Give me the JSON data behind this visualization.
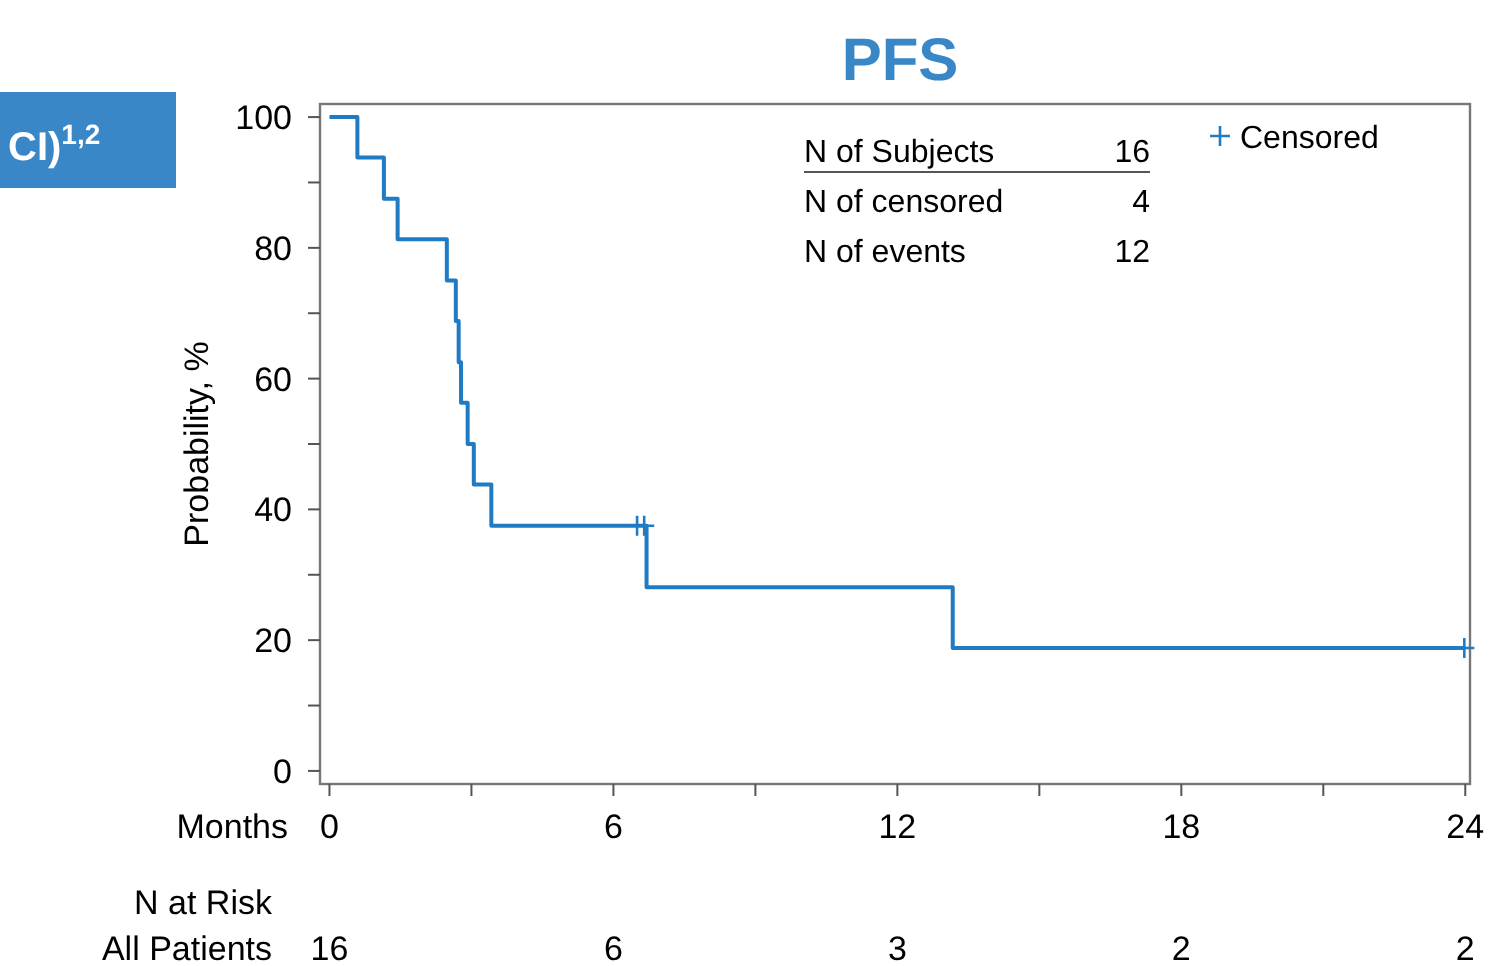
{
  "chart_data": {
    "type": "step",
    "title": "PFS",
    "xlabel": "Months",
    "ylabel": "Probability, %",
    "xlim": [
      -0.2,
      24.1
    ],
    "ylim": [
      -2,
      102
    ],
    "xticks": [
      0,
      {
        "value": 3,
        "label": null
      },
      6,
      {
        "value": 9,
        "label": null
      },
      12,
      {
        "value": 15,
        "label": null
      },
      18,
      {
        "value": 21,
        "label": null
      },
      24
    ],
    "yticks": [
      0,
      {
        "value": 10,
        "label": null
      },
      20,
      {
        "value": 30,
        "label": null
      },
      40,
      {
        "value": 50,
        "label": null
      },
      60,
      {
        "value": 70,
        "label": null
      },
      80,
      {
        "value": 90,
        "label": null
      },
      100
    ],
    "series": [
      {
        "color": "#1f7bc4",
        "marker": "none",
        "x": [
          0,
          0.59,
          1.15,
          1.44,
          2.48,
          2.67,
          2.73,
          2.78,
          2.92,
          3.05,
          3.42,
          6.7,
          13.17,
          24
        ],
        "values": [
          100,
          93.8,
          87.5,
          81.3,
          75,
          68.8,
          62.5,
          56.3,
          50,
          43.8,
          37.5,
          28.1,
          18.8,
          18.8
        ]
      },
      {
        "type": "scatter",
        "name": "Censored",
        "color": "#1f7bc4",
        "marker": "cross",
        "x": [
          6.5,
          6.65,
          23.98
        ],
        "values": [
          37.5,
          37.5,
          18.8
        ]
      }
    ],
    "legend": "top right",
    "annotations": [
      "CI)$^{1,2}$",
      "N of Subjects",
      "16",
      "N of censored",
      "4",
      "N of events",
      "12",
      "N at Risk",
      "All Patients",
      "16",
      "6",
      "3",
      "2",
      "2"
    ]
  }
}
